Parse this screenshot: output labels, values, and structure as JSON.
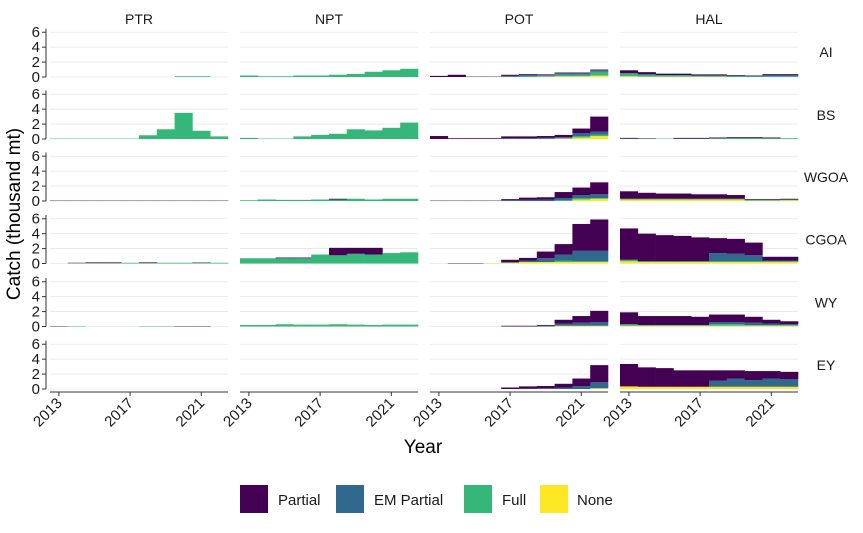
{
  "chart_data": {
    "type": "bar",
    "subtype": "stacked-faceted",
    "xlabel": "Year",
    "ylabel": "Catch (thousand mt)",
    "x_ticks": [
      2013,
      2017,
      2021
    ],
    "y_ticks": [
      0,
      2,
      4,
      6
    ],
    "ylim": [
      0,
      6.5
    ],
    "xlim": [
      2012.5,
      2022.5
    ],
    "years": [
      2013,
      2014,
      2015,
      2016,
      2017,
      2018,
      2019,
      2020,
      2021,
      2022
    ],
    "legend_placement": "bottom",
    "grid": true,
    "gears": [
      "PTR",
      "NPT",
      "POT",
      "HAL"
    ],
    "regions": [
      "AI",
      "BS",
      "WGOA",
      "CGOA",
      "WY",
      "EY"
    ],
    "series": [
      {
        "name": "Partial",
        "color": "#440154"
      },
      {
        "name": "EM Partial",
        "color": "#31688E"
      },
      {
        "name": "Full",
        "color": "#35B779"
      },
      {
        "name": "None",
        "color": "#FDE725"
      }
    ],
    "data": {
      "PTR|AI": {
        "Partial": [
          0,
          0,
          0,
          0,
          0,
          0,
          0,
          0,
          0,
          0
        ],
        "EM Partial": [
          0,
          0,
          0,
          0,
          0,
          0,
          0,
          0,
          0,
          0
        ],
        "Full": [
          0,
          0,
          0,
          0,
          0,
          0,
          0,
          0.1,
          0.1,
          0
        ],
        "None": [
          0,
          0,
          0,
          0,
          0,
          0,
          0,
          0,
          0,
          0
        ]
      },
      "PTR|BS": {
        "Partial": [
          0,
          0,
          0,
          0,
          0,
          0,
          0,
          0,
          0,
          0
        ],
        "EM Partial": [
          0,
          0,
          0,
          0,
          0,
          0,
          0,
          0,
          0,
          0
        ],
        "Full": [
          0.05,
          0.05,
          0.05,
          0.05,
          0.05,
          0.5,
          1.3,
          3.5,
          1.1,
          0.35
        ],
        "None": [
          0,
          0,
          0,
          0,
          0,
          0,
          0,
          0,
          0,
          0
        ]
      },
      "PTR|WGOA": {
        "Partial": [
          0.05,
          0.05,
          0.05,
          0.05,
          0.05,
          0.05,
          0.05,
          0.05,
          0.05,
          0.05
        ],
        "EM Partial": [
          0,
          0,
          0,
          0,
          0,
          0,
          0,
          0,
          0,
          0
        ],
        "Full": [
          0,
          0,
          0,
          0,
          0,
          0,
          0,
          0,
          0,
          0
        ],
        "None": [
          0,
          0,
          0,
          0,
          0,
          0,
          0,
          0,
          0,
          0
        ]
      },
      "PTR|CGOA": {
        "Partial": [
          0,
          0.05,
          0.1,
          0.1,
          0,
          0.1,
          0,
          0,
          0.05,
          0
        ],
        "EM Partial": [
          0,
          0,
          0,
          0,
          0,
          0,
          0,
          0,
          0,
          0
        ],
        "Full": [
          0,
          0.05,
          0.05,
          0.05,
          0.1,
          0.05,
          0.1,
          0.1,
          0.1,
          0.1
        ],
        "None": [
          0,
          0,
          0,
          0,
          0,
          0,
          0,
          0,
          0,
          0
        ]
      },
      "PTR|WY": {
        "Partial": [
          0.05,
          0,
          0,
          0,
          0,
          0,
          0,
          0.05,
          0.05,
          0
        ],
        "EM Partial": [
          0,
          0,
          0,
          0,
          0,
          0,
          0,
          0,
          0,
          0
        ],
        "Full": [
          0,
          0.05,
          0,
          0,
          0,
          0.05,
          0.05,
          0,
          0,
          0
        ],
        "None": [
          0,
          0,
          0,
          0,
          0,
          0,
          0,
          0,
          0,
          0
        ]
      },
      "PTR|EY": {
        "Partial": [
          0,
          0,
          0,
          0,
          0,
          0,
          0,
          0,
          0,
          0
        ],
        "EM Partial": [
          0,
          0,
          0,
          0,
          0,
          0,
          0,
          0,
          0,
          0
        ],
        "Full": [
          0,
          0,
          0,
          0,
          0,
          0,
          0,
          0,
          0,
          0
        ],
        "None": [
          0,
          0,
          0,
          0,
          0,
          0,
          0,
          0,
          0,
          0
        ]
      },
      "NPT|AI": {
        "Partial": [
          0,
          0,
          0,
          0,
          0,
          0,
          0,
          0,
          0,
          0
        ],
        "EM Partial": [
          0,
          0,
          0,
          0,
          0,
          0,
          0,
          0,
          0,
          0
        ],
        "Full": [
          0.2,
          0.1,
          0.1,
          0.2,
          0.2,
          0.3,
          0.4,
          0.7,
          0.9,
          1.1
        ],
        "None": [
          0,
          0,
          0,
          0,
          0,
          0,
          0,
          0,
          0,
          0
        ]
      },
      "NPT|BS": {
        "Partial": [
          0,
          0,
          0,
          0,
          0,
          0,
          0,
          0,
          0,
          0
        ],
        "EM Partial": [
          0,
          0,
          0,
          0,
          0,
          0,
          0,
          0,
          0,
          0
        ],
        "Full": [
          0.15,
          0.05,
          0.05,
          0.35,
          0.55,
          0.7,
          1.3,
          1.15,
          1.5,
          2.2
        ],
        "None": [
          0,
          0,
          0,
          0,
          0,
          0,
          0,
          0,
          0,
          0
        ]
      },
      "NPT|WGOA": {
        "Partial": [
          0,
          0,
          0,
          0,
          0,
          0.1,
          0,
          0,
          0,
          0
        ],
        "EM Partial": [
          0,
          0,
          0,
          0,
          0,
          0,
          0,
          0,
          0,
          0
        ],
        "Full": [
          0.1,
          0.2,
          0.15,
          0.15,
          0.2,
          0.2,
          0.3,
          0.2,
          0.3,
          0.3
        ],
        "None": [
          0,
          0,
          0,
          0,
          0,
          0,
          0,
          0,
          0,
          0
        ]
      },
      "NPT|CGOA": {
        "Partial": [
          0,
          0,
          0.1,
          0.1,
          0,
          1.0,
          0.8,
          0.9,
          0,
          0
        ],
        "EM Partial": [
          0,
          0,
          0,
          0,
          0,
          0,
          0,
          0,
          0,
          0
        ],
        "Full": [
          0.7,
          0.7,
          0.7,
          0.7,
          1.2,
          1.1,
          1.3,
          1.2,
          1.4,
          1.5
        ],
        "None": [
          0,
          0,
          0,
          0,
          0,
          0,
          0,
          0,
          0,
          0
        ]
      },
      "NPT|WY": {
        "Partial": [
          0,
          0,
          0,
          0,
          0,
          0,
          0,
          0,
          0,
          0
        ],
        "EM Partial": [
          0,
          0,
          0,
          0,
          0,
          0,
          0,
          0,
          0,
          0
        ],
        "Full": [
          0.2,
          0.2,
          0.3,
          0.25,
          0.25,
          0.3,
          0.25,
          0.2,
          0.25,
          0.25
        ],
        "None": [
          0,
          0,
          0,
          0,
          0,
          0,
          0,
          0,
          0,
          0
        ]
      },
      "NPT|EY": {
        "Partial": [
          0,
          0,
          0,
          0,
          0,
          0,
          0,
          0,
          0,
          0
        ],
        "EM Partial": [
          0,
          0,
          0,
          0,
          0,
          0,
          0,
          0,
          0,
          0
        ],
        "Full": [
          0,
          0,
          0,
          0,
          0,
          0,
          0,
          0,
          0,
          0
        ],
        "None": [
          0,
          0,
          0,
          0,
          0,
          0,
          0,
          0,
          0,
          0
        ]
      },
      "POT|AI": {
        "Partial": [
          0.15,
          0.3,
          0.05,
          0.05,
          0.15,
          0.1,
          0.1,
          0.1,
          0.1,
          0.1
        ],
        "EM Partial": [
          0,
          0,
          0,
          0,
          0.1,
          0.15,
          0.1,
          0.2,
          0.2,
          0.2
        ],
        "Full": [
          0,
          0,
          0,
          0,
          0.05,
          0.15,
          0.1,
          0.2,
          0.2,
          0.5
        ],
        "None": [
          0,
          0,
          0,
          0,
          0,
          0,
          0.05,
          0.1,
          0.1,
          0.2
        ]
      },
      "POT|BS": {
        "Partial": [
          0.4,
          0.1,
          0.1,
          0.1,
          0.25,
          0.25,
          0.25,
          0.3,
          0.6,
          2.0
        ],
        "EM Partial": [
          0,
          0,
          0,
          0,
          0.1,
          0.1,
          0.1,
          0.15,
          0.4,
          0.4
        ],
        "Full": [
          0,
          0,
          0,
          0,
          0,
          0,
          0.05,
          0.05,
          0.2,
          0.2
        ],
        "None": [
          0,
          0,
          0,
          0,
          0,
          0,
          0,
          0.05,
          0.2,
          0.4
        ]
      },
      "POT|WGOA": {
        "Partial": [
          0.05,
          0.05,
          0.05,
          0.05,
          0.15,
          0.3,
          0.3,
          0.8,
          1.0,
          1.6
        ],
        "EM Partial": [
          0,
          0,
          0,
          0,
          0.1,
          0.15,
          0.2,
          0.3,
          0.4,
          0.5
        ],
        "Full": [
          0,
          0,
          0,
          0,
          0,
          0,
          0,
          0.1,
          0.2,
          0.1
        ],
        "None": [
          0,
          0,
          0,
          0,
          0,
          0,
          0,
          0,
          0.2,
          0.3
        ]
      },
      "POT|CGOA": {
        "Partial": [
          0,
          0.05,
          0.05,
          0,
          0.3,
          0.35,
          0.9,
          1.4,
          3.6,
          4.2
        ],
        "EM Partial": [
          0,
          0,
          0,
          0,
          0.1,
          0.2,
          0.5,
          0.8,
          1.4,
          1.4
        ],
        "Full": [
          0,
          0,
          0,
          0,
          0,
          0,
          0,
          0.2,
          0.1,
          0.1
        ],
        "None": [
          0,
          0,
          0,
          0.05,
          0.1,
          0.2,
          0.2,
          0.2,
          0.2,
          0.2
        ]
      },
      "POT|WY": {
        "Partial": [
          0,
          0,
          0,
          0,
          0.1,
          0.1,
          0.1,
          0.5,
          0.9,
          1.5
        ],
        "EM Partial": [
          0,
          0,
          0,
          0,
          0,
          0,
          0.1,
          0.3,
          0.4,
          0.5
        ],
        "Full": [
          0,
          0,
          0,
          0,
          0,
          0,
          0,
          0,
          0,
          0
        ],
        "None": [
          0,
          0,
          0,
          0,
          0,
          0,
          0,
          0.1,
          0.1,
          0.1
        ]
      },
      "POT|EY": {
        "Partial": [
          0,
          0,
          0,
          0,
          0.2,
          0.3,
          0.3,
          0.5,
          1.0,
          2.3
        ],
        "EM Partial": [
          0,
          0,
          0,
          0,
          0,
          0.05,
          0.1,
          0.2,
          0.4,
          0.8
        ],
        "Full": [
          0,
          0,
          0,
          0,
          0,
          0,
          0,
          0,
          0,
          0
        ],
        "None": [
          0,
          0,
          0,
          0,
          0,
          0,
          0,
          0,
          0,
          0.1
        ]
      },
      "HAL|AI": {
        "Partial": [
          0.4,
          0.3,
          0.2,
          0.2,
          0.15,
          0.15,
          0.1,
          0.1,
          0.1,
          0.1
        ],
        "EM Partial": [
          0,
          0,
          0,
          0,
          0,
          0,
          0,
          0,
          0.2,
          0.2
        ],
        "Full": [
          0.4,
          0.3,
          0.2,
          0.2,
          0.15,
          0.15,
          0.15,
          0.1,
          0.1,
          0.1
        ],
        "None": [
          0.1,
          0.05,
          0.05,
          0.05,
          0.05,
          0.05,
          0,
          0,
          0,
          0
        ]
      },
      "HAL|BS": {
        "Partial": [
          0.1,
          0.05,
          0,
          0.1,
          0.1,
          0.1,
          0.1,
          0.1,
          0.1,
          0
        ],
        "EM Partial": [
          0,
          0,
          0,
          0,
          0,
          0,
          0,
          0,
          0,
          0
        ],
        "Full": [
          0.05,
          0.05,
          0.05,
          0.05,
          0.05,
          0.1,
          0.15,
          0.15,
          0.1,
          0.1
        ],
        "None": [
          0,
          0,
          0,
          0,
          0,
          0,
          0,
          0,
          0,
          0
        ]
      },
      "HAL|WGOA": {
        "Partial": [
          1.0,
          0.8,
          0.7,
          0.7,
          0.6,
          0.6,
          0.5,
          0.1,
          0.1,
          0.1
        ],
        "EM Partial": [
          0,
          0,
          0,
          0,
          0,
          0,
          0,
          0,
          0,
          0
        ],
        "Full": [
          0.1,
          0.1,
          0.1,
          0.1,
          0.1,
          0.1,
          0.1,
          0.1,
          0.1,
          0.1
        ],
        "None": [
          0.2,
          0.2,
          0.2,
          0.2,
          0.2,
          0.2,
          0.2,
          0.05,
          0.05,
          0.1
        ]
      },
      "HAL|CGOA": {
        "Partial": [
          4.2,
          3.7,
          3.5,
          3.4,
          3.2,
          2.0,
          2.0,
          1.7,
          0.5,
          0.5
        ],
        "EM Partial": [
          0,
          0,
          0,
          0,
          0,
          1.1,
          1.0,
          0.8,
          0.1,
          0.1
        ],
        "Full": [
          0.2,
          0.1,
          0.1,
          0.1,
          0.1,
          0.1,
          0.1,
          0.1,
          0.1,
          0.1
        ],
        "None": [
          0.3,
          0.2,
          0.2,
          0.2,
          0.2,
          0.2,
          0.2,
          0.2,
          0.2,
          0.2
        ]
      },
      "HAL|WY": {
        "Partial": [
          1.6,
          1.2,
          1.2,
          1.2,
          1.1,
          1.0,
          1.0,
          0.8,
          0.5,
          0.4
        ],
        "EM Partial": [
          0,
          0,
          0,
          0,
          0,
          0.3,
          0.3,
          0.3,
          0.2,
          0.1
        ],
        "Full": [
          0.2,
          0.1,
          0.1,
          0.1,
          0.1,
          0.2,
          0.2,
          0.1,
          0.1,
          0.1
        ],
        "None": [
          0.1,
          0.1,
          0.1,
          0.1,
          0.1,
          0.1,
          0.1,
          0.1,
          0.1,
          0.1
        ]
      },
      "HAL|EY": {
        "Partial": [
          3.0,
          2.6,
          2.5,
          2.2,
          2.2,
          1.4,
          1.1,
          1.2,
          1.0,
          1.0
        ],
        "EM Partial": [
          0,
          0,
          0,
          0,
          0,
          0.8,
          1.1,
          0.9,
          1.1,
          1.0
        ],
        "Full": [
          0,
          0,
          0,
          0,
          0,
          0,
          0,
          0,
          0,
          0
        ],
        "None": [
          0.35,
          0.3,
          0.3,
          0.3,
          0.3,
          0.3,
          0.3,
          0.3,
          0.3,
          0.3
        ]
      }
    }
  }
}
